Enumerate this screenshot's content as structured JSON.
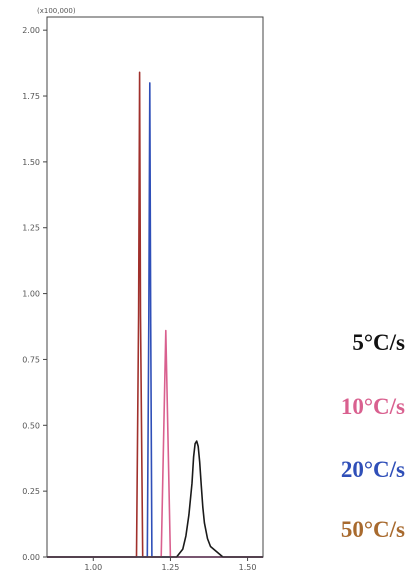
{
  "chart_data": {
    "type": "line",
    "scale_factor_label": "(x100,000)",
    "xlim": [
      0.85,
      1.55
    ],
    "ylim": [
      0,
      2.05
    ],
    "x_ticks": [
      1.0,
      1.25,
      1.5
    ],
    "x_tick_labels": [
      "1.00",
      "1.25",
      "1.50"
    ],
    "y_ticks": [
      0.0,
      0.25,
      0.5,
      0.75,
      1.0,
      1.25,
      1.5,
      1.75,
      2.0
    ],
    "y_tick_labels": [
      "0.00",
      "0.25",
      "0.50",
      "0.75",
      "1.00",
      "1.25",
      "1.50",
      "1.75",
      "2.00"
    ],
    "grid": false,
    "legend_position": "right",
    "series": [
      {
        "name": "5°C/s",
        "color": "#1a1a1a",
        "x": [
          0.85,
          1.27,
          1.29,
          1.3,
          1.31,
          1.32,
          1.325,
          1.33,
          1.335,
          1.34,
          1.345,
          1.35,
          1.355,
          1.36,
          1.37,
          1.38,
          1.4,
          1.42,
          1.55
        ],
        "y": [
          0.0,
          0.0,
          0.03,
          0.08,
          0.16,
          0.28,
          0.38,
          0.43,
          0.44,
          0.42,
          0.36,
          0.27,
          0.19,
          0.13,
          0.07,
          0.04,
          0.02,
          0.0,
          0.0
        ]
      },
      {
        "name": "10°C/s",
        "color": "#d9608f",
        "x": [
          0.85,
          1.22,
          1.228,
          1.235,
          1.242,
          1.25,
          1.55
        ],
        "y": [
          0.0,
          0.0,
          0.45,
          0.86,
          0.45,
          0.0,
          0.0
        ]
      },
      {
        "name": "20°C/s",
        "color": "#2f4fb8",
        "x": [
          0.85,
          1.175,
          1.18,
          1.183,
          1.186,
          1.19,
          1.55
        ],
        "y": [
          0.0,
          0.0,
          0.9,
          1.8,
          0.9,
          0.0,
          0.0
        ]
      },
      {
        "name": "50°C/s",
        "color": "#a0302c",
        "x": [
          0.85,
          1.14,
          1.147,
          1.15,
          1.153,
          1.16,
          1.55
        ],
        "y": [
          0.0,
          0.0,
          0.92,
          1.84,
          0.92,
          0.0,
          0.0
        ]
      }
    ]
  },
  "legend": [
    {
      "label": "5°C/s",
      "color": "#111111"
    },
    {
      "label": "10°C/s",
      "color": "#d9608f"
    },
    {
      "label": "20°C/s",
      "color": "#2f4fb8"
    },
    {
      "label": "50°C/s",
      "color": "#a86a2e"
    }
  ]
}
